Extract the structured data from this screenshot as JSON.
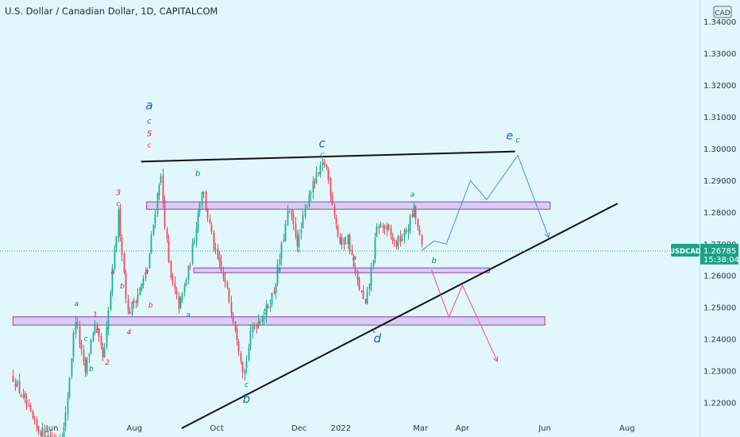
{
  "header": {
    "title": "U.S. Dollar / Canadian Dollar, 1D, CAPITALCOM",
    "currency": "CAD",
    "pair_label": "USDCAD",
    "last_price": "1.26785",
    "countdown": "15:38:04"
  },
  "colors": {
    "background": "#e1f7fb",
    "bull_candle": "#1fae8e",
    "bear_candle": "#ef4a5c",
    "wave_blue": "#1c5fd1",
    "wave_teal": "#0a8a72",
    "wave_red": "#e0233f",
    "zone_fill": "#d6c7f1",
    "zone_border": "#8b3db5",
    "projection_blue": "#4c86e6",
    "projection_red": "#ef4f78",
    "price_badge": "#1aa384"
  },
  "chart_data": {
    "type": "candlestick",
    "symbol": "USDCAD",
    "timeframe": "1D",
    "x_tick_labels": [
      "Jun",
      "Aug",
      "Oct",
      "Dec",
      "2022",
      "Mar",
      "Apr",
      "Jun",
      "Aug"
    ],
    "y_tick_labels": [
      "1.34000",
      "1.33000",
      "1.32000",
      "1.31000",
      "1.30000",
      "1.29000",
      "1.28000",
      "1.27000",
      "1.26000",
      "1.25000",
      "1.24000",
      "1.23000",
      "1.22000"
    ],
    "y_ticks": [
      1.34,
      1.33,
      1.32,
      1.31,
      1.3,
      1.29,
      1.28,
      1.27,
      1.26,
      1.25,
      1.24,
      1.23,
      1.22
    ],
    "ylim": [
      1.2135,
      1.3415
    ],
    "last_price": 1.26785,
    "price_path": [
      [
        "2021-05-03",
        1.228
      ],
      [
        "2021-05-20",
        1.212
      ],
      [
        "2021-06-04",
        1.208
      ],
      [
        "2021-06-10",
        1.212
      ],
      [
        "2021-06-18",
        1.247
      ],
      [
        "2021-06-25",
        1.229
      ],
      [
        "2021-07-02",
        1.245
      ],
      [
        "2021-07-09",
        1.233
      ],
      [
        "2021-07-15",
        1.259
      ],
      [
        "2021-07-20",
        1.28
      ],
      [
        "2021-07-27",
        1.248
      ],
      [
        "2021-08-05",
        1.256
      ],
      [
        "2021-08-10",
        1.261
      ],
      [
        "2021-08-20",
        1.293
      ],
      [
        "2021-08-27",
        1.26
      ],
      [
        "2021-09-03",
        1.25
      ],
      [
        "2021-09-10",
        1.262
      ],
      [
        "2021-09-20",
        1.288
      ],
      [
        "2021-09-29",
        1.268
      ],
      [
        "2021-10-08",
        1.256
      ],
      [
        "2021-10-15",
        1.243
      ],
      [
        "2021-10-21",
        1.229
      ],
      [
        "2021-10-27",
        1.244
      ],
      [
        "2021-11-05",
        1.248
      ],
      [
        "2021-11-12",
        1.255
      ],
      [
        "2021-11-23",
        1.281
      ],
      [
        "2021-11-30",
        1.27
      ],
      [
        "2021-12-08",
        1.286
      ],
      [
        "2021-12-20",
        1.296
      ],
      [
        "2021-12-31",
        1.27
      ],
      [
        "2022-01-06",
        1.272
      ],
      [
        "2022-01-11",
        1.261
      ],
      [
        "2022-01-19",
        1.25
      ],
      [
        "2022-01-28",
        1.276
      ],
      [
        "2022-02-03",
        1.275
      ],
      [
        "2022-02-10",
        1.27
      ],
      [
        "2022-02-17",
        1.273
      ],
      [
        "2022-02-24",
        1.281
      ],
      [
        "2022-03-02",
        1.2679
      ]
    ],
    "horizontal_zones": [
      {
        "start": "2021-08-10",
        "end": "2022-06-05",
        "low": 1.281,
        "high": 1.2833
      },
      {
        "start": "2021-09-14",
        "end": "2022-04-21",
        "low": 1.261,
        "high": 1.2625
      },
      {
        "start": "2021-05-03",
        "end": "2022-06-01",
        "low": 1.2445,
        "high": 1.2471
      }
    ],
    "trendlines": [
      {
        "from": [
          "2021-08-06",
          1.296
        ],
        "to": [
          "2022-05-10",
          1.2992
        ]
      },
      {
        "from": [
          "2021-09-05",
          1.212
        ],
        "to": [
          "2022-07-25",
          1.2828
        ]
      }
    ],
    "projections": [
      {
        "name": "bullish",
        "points": [
          [
            "2022-03-02",
            1.268
          ],
          [
            "2022-03-11",
            1.271
          ],
          [
            "2022-03-20",
            1.27
          ],
          [
            "2022-04-07",
            1.29
          ],
          [
            "2022-04-19",
            1.284
          ],
          [
            "2022-05-12",
            1.298
          ],
          [
            "2022-06-04",
            1.272
          ]
        ]
      },
      {
        "name": "bearish",
        "points": [
          [
            "2022-03-09",
            1.262
          ],
          [
            "2022-03-22",
            1.247
          ],
          [
            "2022-04-01",
            1.257
          ],
          [
            "2022-04-27",
            1.233
          ]
        ]
      }
    ],
    "wave_labels": [
      {
        "text": "a",
        "date": "2021-08-12",
        "price": 1.3125,
        "color": "blue",
        "size": 15
      },
      {
        "text": "c",
        "date": "2021-08-12",
        "price": 1.308,
        "color": "teal",
        "size": 10
      },
      {
        "text": "5",
        "date": "2021-08-12",
        "price": 1.304,
        "color": "red",
        "size": 10
      },
      {
        "text": "c",
        "date": "2021-08-12",
        "price": 1.3005,
        "color": "red",
        "size": 9
      },
      {
        "text": "b",
        "date": "2021-09-17",
        "price": 1.2915,
        "color": "teal",
        "size": 10
      },
      {
        "text": "3",
        "date": "2021-07-20",
        "price": 1.2855,
        "color": "red",
        "size": 10
      },
      {
        "text": "c",
        "date": "2021-07-20",
        "price": 1.282,
        "color": "red",
        "size": 9
      },
      {
        "text": "a",
        "date": "2021-07-16",
        "price": 1.2605,
        "color": "red",
        "size": 9
      },
      {
        "text": "a",
        "date": "2021-08-10",
        "price": 1.2605,
        "color": "red",
        "size": 9
      },
      {
        "text": "b",
        "date": "2021-07-23",
        "price": 1.256,
        "color": "red",
        "size": 9
      },
      {
        "text": "b",
        "date": "2021-08-13",
        "price": 1.25,
        "color": "red",
        "size": 9
      },
      {
        "text": "4",
        "date": "2021-07-28",
        "price": 1.2415,
        "color": "red",
        "size": 9
      },
      {
        "text": "a",
        "date": "2021-06-19",
        "price": 1.2505,
        "color": "teal",
        "size": 9
      },
      {
        "text": "1",
        "date": "2021-07-03",
        "price": 1.247,
        "color": "red",
        "size": 9
      },
      {
        "text": "b",
        "date": "2021-07-05",
        "price": 1.242,
        "color": "red",
        "size": 9
      },
      {
        "text": "c",
        "date": "2021-06-26",
        "price": 1.2395,
        "color": "teal",
        "size": 9
      },
      {
        "text": "2",
        "date": "2021-07-12",
        "price": 1.232,
        "color": "red",
        "size": 9
      },
      {
        "text": "b",
        "date": "2021-06-30",
        "price": 1.23,
        "color": "teal",
        "size": 9
      },
      {
        "text": "a",
        "date": "2021-09-10",
        "price": 1.247,
        "color": "teal",
        "size": 9
      },
      {
        "text": "b",
        "date": "2021-11-06",
        "price": 1.248,
        "color": "teal",
        "size": 9
      },
      {
        "text": "a",
        "date": "2021-11-16",
        "price": 1.261,
        "color": "teal",
        "size": 9
      },
      {
        "text": "c",
        "date": "2021-10-23",
        "price": 1.225,
        "color": "teal",
        "size": 9
      },
      {
        "text": "b",
        "date": "2021-10-23",
        "price": 1.22,
        "color": "blue",
        "size": 15
      },
      {
        "text": "c",
        "date": "2021-12-18",
        "price": 1.3005,
        "color": "blue",
        "size": 15
      },
      {
        "text": "c",
        "date": "2021-12-18",
        "price": 1.2975,
        "color": "teal",
        "size": 9
      },
      {
        "text": "a",
        "date": "2022-01-11",
        "price": 1.265,
        "color": "teal",
        "size": 9
      },
      {
        "text": "c",
        "date": "2022-01-26",
        "price": 1.242,
        "color": "teal",
        "size": 9
      },
      {
        "text": "d",
        "date": "2022-01-28",
        "price": 1.239,
        "color": "blue",
        "size": 15
      },
      {
        "text": "a",
        "date": "2022-02-23",
        "price": 1.285,
        "color": "teal",
        "size": 9
      },
      {
        "text": "b",
        "date": "2022-03-11",
        "price": 1.264,
        "color": "teal",
        "size": 10
      },
      {
        "text": "e",
        "date": "2022-05-06",
        "price": 1.303,
        "color": "blue",
        "size": 14
      },
      {
        "text": "c",
        "date": "2022-05-12",
        "price": 1.302,
        "color": "teal",
        "size": 10
      }
    ]
  }
}
